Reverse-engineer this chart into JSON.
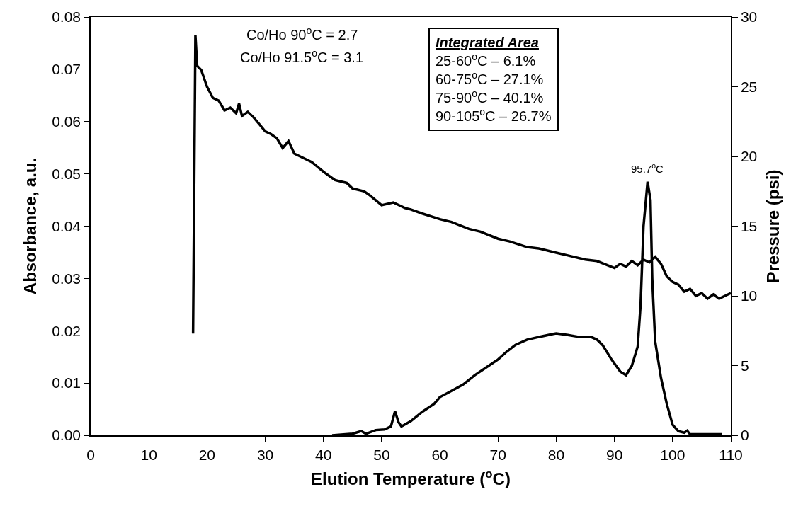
{
  "chart_data": {
    "type": "line",
    "xlabel": "Elution Temperature ($^{o}$C)",
    "ylabel": "Absorbance, a.u.",
    "y2label": "Pressure (psi)",
    "xlim": [
      0,
      110
    ],
    "xticks": [
      0,
      10,
      20,
      30,
      40,
      50,
      60,
      70,
      80,
      90,
      100,
      110
    ],
    "ylim": [
      0,
      0.08
    ],
    "yticks": [
      {
        "value": 0,
        "label": "0.00"
      },
      {
        "value": 0.01,
        "label": "0.01"
      },
      {
        "value": 0.02,
        "label": "0.02"
      },
      {
        "value": 0.03,
        "label": "0.03"
      },
      {
        "value": 0.04,
        "label": "0.04"
      },
      {
        "value": 0.05,
        "label": "0.05"
      },
      {
        "value": 0.06,
        "label": "0.06"
      },
      {
        "value": 0.07,
        "label": "0.07"
      },
      {
        "value": 0.08,
        "label": "0.08"
      }
    ],
    "y2lim": [
      0,
      30
    ],
    "y2ticks": [
      0,
      5,
      10,
      15,
      20,
      25,
      30
    ],
    "marker": "none",
    "line_style": "solid",
    "series": [
      {
        "color": "#000000",
        "x": [
          41.5,
          45,
          46.5,
          47.3,
          49,
          50.5,
          51.6,
          52.3,
          52.9,
          53.4,
          55,
          57,
          59,
          60,
          62,
          64,
          66,
          68,
          70,
          71.5,
          73,
          75,
          77,
          79.5,
          80,
          82,
          84,
          86,
          87,
          88,
          89.5,
          91,
          92,
          93,
          94,
          94.5,
          95,
          95.7,
          96.2,
          96.5,
          97,
          98,
          99,
          100,
          101,
          102,
          102.5,
          103,
          108.5
        ],
        "values": [
          0.0,
          0.0003,
          0.0008,
          0.0003,
          0.001,
          0.0011,
          0.0017,
          0.0046,
          0.0025,
          0.0017,
          0.0027,
          0.0045,
          0.006,
          0.0073,
          0.0085,
          0.0097,
          0.0115,
          0.013,
          0.0145,
          0.016,
          0.0173,
          0.0183,
          0.0188,
          0.0194,
          0.0195,
          0.0192,
          0.0188,
          0.0188,
          0.0183,
          0.0172,
          0.0145,
          0.0122,
          0.0115,
          0.0133,
          0.017,
          0.025,
          0.04,
          0.0485,
          0.045,
          0.03,
          0.018,
          0.011,
          0.006,
          0.002,
          0.0008,
          0.0005,
          0.0009,
          0.0002,
          0.0002
        ]
      },
      {
        "color": "#000000",
        "axis": "y2",
        "x": [
          17.6,
          18,
          18.3,
          19,
          20,
          21,
          22,
          23,
          24,
          25,
          25.5,
          26,
          27,
          28,
          29,
          30,
          31,
          32,
          33,
          34,
          35,
          36,
          38,
          40,
          42,
          44,
          45,
          47,
          48,
          50,
          52,
          54,
          55,
          57,
          60,
          62,
          65,
          67,
          70,
          72,
          75,
          77,
          80,
          82,
          85,
          87,
          90,
          91,
          92,
          93,
          94,
          95,
          96,
          97,
          98,
          99,
          100,
          101,
          102,
          103,
          104,
          105,
          106,
          107,
          108,
          109,
          110
        ],
        "values": [
          7.3,
          28.7,
          26.5,
          26.2,
          25.0,
          24.2,
          24.0,
          23.3,
          23.5,
          23.1,
          23.8,
          22.9,
          23.2,
          22.8,
          22.3,
          21.8,
          21.6,
          21.3,
          20.6,
          21.1,
          20.2,
          20.0,
          19.6,
          18.9,
          18.3,
          18.1,
          17.7,
          17.5,
          17.2,
          16.5,
          16.7,
          16.3,
          16.2,
          15.9,
          15.5,
          15.3,
          14.8,
          14.6,
          14.1,
          13.9,
          13.5,
          13.4,
          13.1,
          12.9,
          12.6,
          12.5,
          12.0,
          12.3,
          12.1,
          12.5,
          12.2,
          12.6,
          12.4,
          12.8,
          12.3,
          11.4,
          11.0,
          10.8,
          10.3,
          10.5,
          10.0,
          10.2,
          9.8,
          10.1,
          9.8,
          10.0,
          10.2
        ]
      }
    ],
    "annotations": [
      "Co/Ho 90$^{o}$C = 2.7",
      "Co/Ho 91.5$^{o}$C = 3.1",
      "Integrated Area",
      "25-60$^{o}$C – 6.1%",
      "60-75$^{o}$C – 27.1%",
      "75-90$^{o}$C – 40.1%",
      "90-105$^{o}$C – 26.7%",
      {
        "text": "95.7$^{o}$C",
        "x": 95.7,
        "y": 0.0485
      }
    ]
  }
}
